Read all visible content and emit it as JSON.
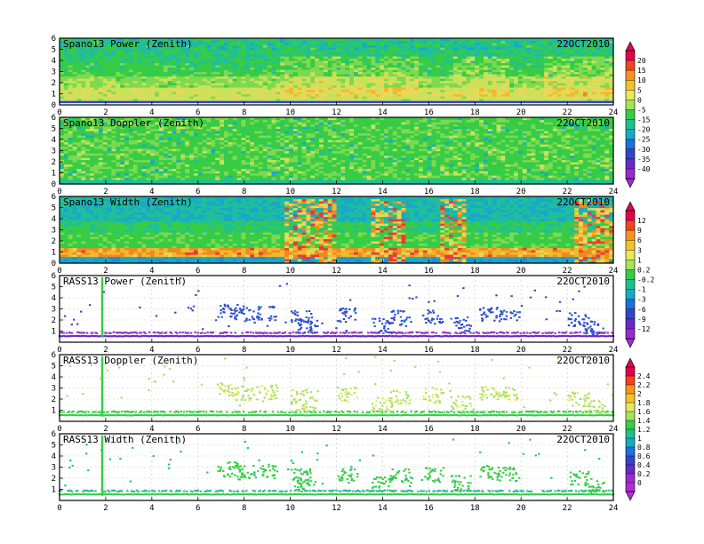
{
  "chart_data": [
    {
      "type": "heatmap",
      "title": "Spano13 Power (Zenith)",
      "date": "22OCT2010",
      "kind": "spano",
      "colorbar": 0,
      "xlim": [
        0,
        24
      ],
      "ylim": [
        0,
        6
      ],
      "x_ticks": [
        "0",
        "2",
        "4",
        "6",
        "8",
        "10",
        "12",
        "14",
        "16",
        "18",
        "20",
        "22",
        "24"
      ],
      "y_ticks": [
        "0",
        "1",
        "2",
        "3",
        "4",
        "5",
        "6"
      ]
    },
    {
      "type": "heatmap",
      "title": "Spano13 Doppler (Zenith)",
      "date": "22OCT2010",
      "kind": "spano",
      "colorbar": 0,
      "xlim": [
        0,
        24
      ],
      "ylim": [
        0,
        6
      ],
      "x_ticks": [
        "0",
        "2",
        "4",
        "6",
        "8",
        "10",
        "12",
        "14",
        "16",
        "18",
        "20",
        "22",
        "24"
      ],
      "y_ticks": [
        "0",
        "1",
        "2",
        "3",
        "4",
        "5",
        "6"
      ]
    },
    {
      "type": "heatmap",
      "title": "Spano13 Width (Zenith)",
      "date": "22OCT2010",
      "kind": "spano",
      "colorbar": 1,
      "xlim": [
        0,
        24
      ],
      "ylim": [
        0,
        6
      ],
      "x_ticks": [
        "0",
        "2",
        "4",
        "6",
        "8",
        "10",
        "12",
        "14",
        "16",
        "18",
        "20",
        "22",
        "24"
      ],
      "y_ticks": [
        "0",
        "1",
        "2",
        "3",
        "4",
        "5",
        "6"
      ]
    },
    {
      "type": "scatter",
      "title": "RASS13 Power (Zenith)",
      "date": "22OCT2010",
      "kind": "rass",
      "colorbar": 1,
      "xlim": [
        0,
        24
      ],
      "ylim": [
        0,
        6
      ],
      "x_ticks": [
        "0",
        "2",
        "4",
        "6",
        "8",
        "10",
        "12",
        "14",
        "16",
        "18",
        "20",
        "22",
        "24"
      ],
      "y_ticks": [
        "1",
        "2",
        "3",
        "4",
        "5",
        "6"
      ]
    },
    {
      "type": "scatter",
      "title": "RASS13 Doppler (Zenith)",
      "date": "22OCT2010",
      "kind": "rass",
      "colorbar": 2,
      "xlim": [
        0,
        24
      ],
      "ylim": [
        0,
        6
      ],
      "x_ticks": [
        "0",
        "2",
        "4",
        "6",
        "8",
        "10",
        "12",
        "14",
        "16",
        "18",
        "20",
        "22",
        "24"
      ],
      "y_ticks": [
        "1",
        "2",
        "3",
        "4",
        "5",
        "6"
      ]
    },
    {
      "type": "scatter",
      "title": "RASS13 Width (Zenith)",
      "date": "22OCT2010",
      "kind": "rass",
      "colorbar": 2,
      "xlim": [
        0,
        24
      ],
      "ylim": [
        0,
        6
      ],
      "x_ticks": [
        "0",
        "2",
        "4",
        "6",
        "8",
        "10",
        "12",
        "14",
        "16",
        "18",
        "20",
        "22",
        "24"
      ],
      "y_ticks": [
        "1",
        "2",
        "3",
        "4",
        "5",
        "6"
      ]
    }
  ],
  "colorbars": [
    {
      "labels": [
        "20",
        "15",
        "10",
        "5",
        "0",
        "-5",
        "-15",
        "-20",
        "-25",
        "-30",
        "-35",
        "-40"
      ],
      "colors": [
        "#e3004f",
        "#f0441f",
        "#f79520",
        "#f4c22b",
        "#e8e85a",
        "#a8e05f",
        "#37cc45",
        "#1fbf8e",
        "#18a9c3",
        "#1d6fd9",
        "#3346c9",
        "#6a28c9",
        "#9b2bd0"
      ]
    },
    {
      "labels": [
        "12",
        "9",
        "6",
        "3",
        "1",
        "0.2",
        "-0.2",
        "-1",
        "-3",
        "-6",
        "-9",
        "-12"
      ],
      "colors": [
        "#e3004f",
        "#f0441f",
        "#f79520",
        "#f4c22b",
        "#e8e85a",
        "#a8e05f",
        "#37cc45",
        "#1fbf8e",
        "#18a9c3",
        "#1d6fd9",
        "#3346c9",
        "#6a28c9",
        "#9b2bd0"
      ]
    },
    {
      "labels": [
        "2.4",
        "2.2",
        "2",
        "1.8",
        "1.6",
        "1.4",
        "1.2",
        "1",
        "0.8",
        "0.6",
        "0.4",
        "0.2",
        "0"
      ],
      "colors": [
        "#e3004f",
        "#f0441f",
        "#f79520",
        "#f4c22b",
        "#e8e85a",
        "#a8e05f",
        "#37cc45",
        "#1fbf8e",
        "#18a9c3",
        "#1d6fd9",
        "#3346c9",
        "#6a28c9",
        "#9b2bd0",
        "#b52bd6"
      ]
    }
  ]
}
